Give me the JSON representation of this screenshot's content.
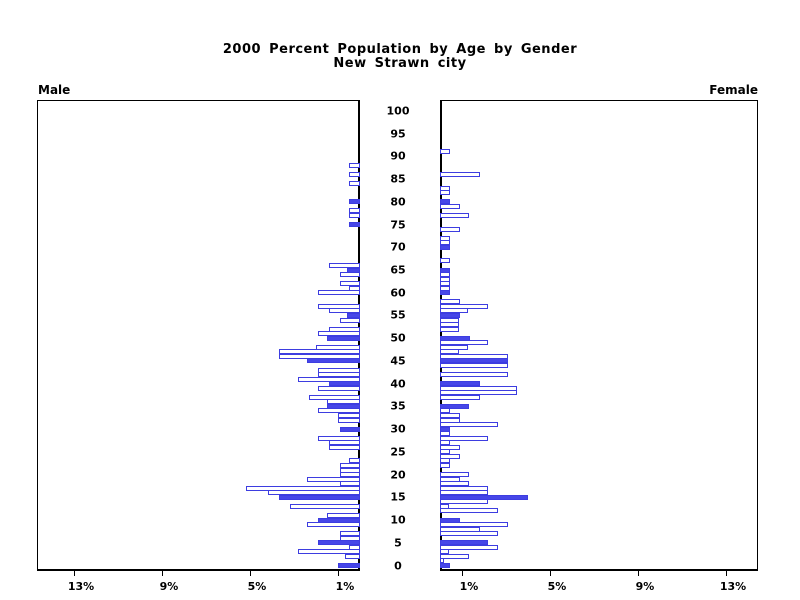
{
  "title": {
    "line1": "2000 Percent Population by Age by Gender",
    "line2": "New Strawn city"
  },
  "side_labels": {
    "left": "Male",
    "right": "Female"
  },
  "colors": {
    "bar_fill": "#4646e8",
    "bar_outline": "#3d3de0",
    "box_border": "#000000",
    "background": "#ffffff",
    "text": "#000000"
  },
  "chart_data": {
    "type": "bar",
    "orientation": "horizontal-pyramid",
    "title": "2000 Percent Population by Age by Gender",
    "subtitle": "New Strawn city",
    "unit": "percent of total population",
    "age_axis": {
      "min": 0,
      "max": 100,
      "tick_step": 5
    },
    "pct_axis": {
      "tick_values": [
        1,
        5,
        9,
        13
      ],
      "tick_labels": [
        "1%",
        "5%",
        "9%",
        "13%"
      ],
      "max": 14.5
    },
    "legend_note": "filled bars are blue, others white with blue outline",
    "series": [
      {
        "name": "Male",
        "side": "left",
        "bars": [
          {
            "age": 0,
            "pct": 1.0,
            "filled": true
          },
          {
            "age": 2,
            "pct": 0.7,
            "filled": false
          },
          {
            "age": 3,
            "pct": 2.8,
            "filled": false
          },
          {
            "age": 4,
            "pct": 0.5,
            "filled": false
          },
          {
            "age": 5,
            "pct": 1.9,
            "filled": true
          },
          {
            "age": 6,
            "pct": 0.9,
            "filled": false
          },
          {
            "age": 7,
            "pct": 0.9,
            "filled": false
          },
          {
            "age": 9,
            "pct": 2.4,
            "filled": false
          },
          {
            "age": 10,
            "pct": 1.9,
            "filled": true
          },
          {
            "age": 11,
            "pct": 1.5,
            "filled": false
          },
          {
            "age": 13,
            "pct": 3.2,
            "filled": false
          },
          {
            "age": 15,
            "pct": 3.7,
            "filled": true
          },
          {
            "age": 16,
            "pct": 4.2,
            "filled": false
          },
          {
            "age": 17,
            "pct": 5.2,
            "filled": false
          },
          {
            "age": 18,
            "pct": 0.9,
            "filled": false
          },
          {
            "age": 19,
            "pct": 2.4,
            "filled": false
          },
          {
            "age": 20,
            "pct": 0.9,
            "filled": false
          },
          {
            "age": 21,
            "pct": 0.9,
            "filled": false
          },
          {
            "age": 22,
            "pct": 0.9,
            "filled": false
          },
          {
            "age": 23,
            "pct": 0.5,
            "filled": false
          },
          {
            "age": 26,
            "pct": 1.4,
            "filled": false
          },
          {
            "age": 27,
            "pct": 1.4,
            "filled": false
          },
          {
            "age": 28,
            "pct": 1.9,
            "filled": false
          },
          {
            "age": 30,
            "pct": 0.9,
            "filled": true
          },
          {
            "age": 32,
            "pct": 1.0,
            "filled": false
          },
          {
            "age": 33,
            "pct": 1.0,
            "filled": false
          },
          {
            "age": 34,
            "pct": 1.9,
            "filled": false
          },
          {
            "age": 35,
            "pct": 1.5,
            "filled": true
          },
          {
            "age": 36,
            "pct": 1.5,
            "filled": false
          },
          {
            "age": 37,
            "pct": 2.3,
            "filled": false
          },
          {
            "age": 39,
            "pct": 1.9,
            "filled": false
          },
          {
            "age": 40,
            "pct": 1.4,
            "filled": true
          },
          {
            "age": 41,
            "pct": 2.8,
            "filled": false
          },
          {
            "age": 42,
            "pct": 1.9,
            "filled": false
          },
          {
            "age": 43,
            "pct": 1.9,
            "filled": false
          },
          {
            "age": 45,
            "pct": 2.4,
            "filled": true
          },
          {
            "age": 46,
            "pct": 3.7,
            "filled": false
          },
          {
            "age": 47,
            "pct": 3.7,
            "filled": false
          },
          {
            "age": 48,
            "pct": 2.0,
            "filled": false
          },
          {
            "age": 50,
            "pct": 1.5,
            "filled": true
          },
          {
            "age": 51,
            "pct": 1.9,
            "filled": false
          },
          {
            "age": 52,
            "pct": 1.4,
            "filled": false
          },
          {
            "age": 54,
            "pct": 0.9,
            "filled": false
          },
          {
            "age": 55,
            "pct": 0.6,
            "filled": true
          },
          {
            "age": 56,
            "pct": 1.4,
            "filled": false
          },
          {
            "age": 57,
            "pct": 1.9,
            "filled": false
          },
          {
            "age": 60,
            "pct": 1.9,
            "filled": false
          },
          {
            "age": 61,
            "pct": 0.5,
            "filled": false
          },
          {
            "age": 62,
            "pct": 0.9,
            "filled": false
          },
          {
            "age": 64,
            "pct": 0.9,
            "filled": false
          },
          {
            "age": 65,
            "pct": 0.6,
            "filled": true
          },
          {
            "age": 66,
            "pct": 1.4,
            "filled": false
          },
          {
            "age": 75,
            "pct": 0.5,
            "filled": true
          },
          {
            "age": 77,
            "pct": 0.5,
            "filled": false
          },
          {
            "age": 78,
            "pct": 0.5,
            "filled": false
          },
          {
            "age": 80,
            "pct": 0.5,
            "filled": true
          },
          {
            "age": 84,
            "pct": 0.5,
            "filled": false
          },
          {
            "age": 86,
            "pct": 0.5,
            "filled": false
          },
          {
            "age": 88,
            "pct": 0.5,
            "filled": false
          }
        ]
      },
      {
        "name": "Female",
        "side": "right",
        "bars": [
          {
            "age": 0,
            "pct": 0.45,
            "filled": true
          },
          {
            "age": 1,
            "pct": 0.2,
            "filled": false
          },
          {
            "age": 2,
            "pct": 1.3,
            "filled": false
          },
          {
            "age": 3,
            "pct": 0.4,
            "filled": false
          },
          {
            "age": 4,
            "pct": 2.65,
            "filled": false
          },
          {
            "age": 5,
            "pct": 2.2,
            "filled": true
          },
          {
            "age": 7,
            "pct": 2.65,
            "filled": false
          },
          {
            "age": 8,
            "pct": 1.8,
            "filled": false
          },
          {
            "age": 9,
            "pct": 3.1,
            "filled": false
          },
          {
            "age": 10,
            "pct": 0.9,
            "filled": true
          },
          {
            "age": 12,
            "pct": 2.65,
            "filled": false
          },
          {
            "age": 13,
            "pct": 0.4,
            "filled": false
          },
          {
            "age": 14,
            "pct": 2.2,
            "filled": false
          },
          {
            "age": 15,
            "pct": 4.0,
            "filled": true
          },
          {
            "age": 16,
            "pct": 2.2,
            "filled": false
          },
          {
            "age": 17,
            "pct": 2.2,
            "filled": false
          },
          {
            "age": 18,
            "pct": 1.3,
            "filled": false
          },
          {
            "age": 19,
            "pct": 0.9,
            "filled": false
          },
          {
            "age": 20,
            "pct": 1.3,
            "filled": false
          },
          {
            "age": 22,
            "pct": 0.45,
            "filled": false
          },
          {
            "age": 23,
            "pct": 0.45,
            "filled": false
          },
          {
            "age": 24,
            "pct": 0.9,
            "filled": false
          },
          {
            "age": 25,
            "pct": 0.45,
            "filled": false
          },
          {
            "age": 26,
            "pct": 0.9,
            "filled": false
          },
          {
            "age": 27,
            "pct": 0.45,
            "filled": false
          },
          {
            "age": 28,
            "pct": 2.2,
            "filled": false
          },
          {
            "age": 29,
            "pct": 0.45,
            "filled": false
          },
          {
            "age": 30,
            "pct": 0.45,
            "filled": true
          },
          {
            "age": 31,
            "pct": 2.65,
            "filled": false
          },
          {
            "age": 32,
            "pct": 0.9,
            "filled": false
          },
          {
            "age": 33,
            "pct": 0.9,
            "filled": false
          },
          {
            "age": 34,
            "pct": 0.45,
            "filled": false
          },
          {
            "age": 35,
            "pct": 1.3,
            "filled": true
          },
          {
            "age": 37,
            "pct": 1.8,
            "filled": false
          },
          {
            "age": 38,
            "pct": 3.5,
            "filled": false
          },
          {
            "age": 39,
            "pct": 3.5,
            "filled": false
          },
          {
            "age": 40,
            "pct": 1.8,
            "filled": true
          },
          {
            "age": 42,
            "pct": 3.1,
            "filled": false
          },
          {
            "age": 44,
            "pct": 3.1,
            "filled": false
          },
          {
            "age": 45,
            "pct": 3.1,
            "filled": true
          },
          {
            "age": 46,
            "pct": 3.1,
            "filled": false
          },
          {
            "age": 47,
            "pct": 0.85,
            "filled": false
          },
          {
            "age": 48,
            "pct": 1.25,
            "filled": false
          },
          {
            "age": 49,
            "pct": 2.2,
            "filled": false
          },
          {
            "age": 50,
            "pct": 1.35,
            "filled": true
          },
          {
            "age": 52,
            "pct": 0.85,
            "filled": false
          },
          {
            "age": 53,
            "pct": 0.85,
            "filled": false
          },
          {
            "age": 54,
            "pct": 0.85,
            "filled": false
          },
          {
            "age": 55,
            "pct": 0.9,
            "filled": true
          },
          {
            "age": 56,
            "pct": 1.25,
            "filled": false
          },
          {
            "age": 57,
            "pct": 2.2,
            "filled": false
          },
          {
            "age": 58,
            "pct": 0.9,
            "filled": false
          },
          {
            "age": 60,
            "pct": 0.45,
            "filled": true
          },
          {
            "age": 61,
            "pct": 0.45,
            "filled": false
          },
          {
            "age": 62,
            "pct": 0.45,
            "filled": false
          },
          {
            "age": 63,
            "pct": 0.45,
            "filled": false
          },
          {
            "age": 64,
            "pct": 0.45,
            "filled": false
          },
          {
            "age": 65,
            "pct": 0.45,
            "filled": true
          },
          {
            "age": 67,
            "pct": 0.45,
            "filled": false
          },
          {
            "age": 70,
            "pct": 0.45,
            "filled": true
          },
          {
            "age": 71,
            "pct": 0.45,
            "filled": false
          },
          {
            "age": 72,
            "pct": 0.45,
            "filled": false
          },
          {
            "age": 74,
            "pct": 0.9,
            "filled": false
          },
          {
            "age": 77,
            "pct": 1.3,
            "filled": false
          },
          {
            "age": 79,
            "pct": 0.9,
            "filled": false
          },
          {
            "age": 80,
            "pct": 0.45,
            "filled": true
          },
          {
            "age": 82,
            "pct": 0.45,
            "filled": false
          },
          {
            "age": 83,
            "pct": 0.45,
            "filled": false
          },
          {
            "age": 86,
            "pct": 1.8,
            "filled": false
          },
          {
            "age": 91,
            "pct": 0.45,
            "filled": false
          }
        ]
      }
    ]
  }
}
